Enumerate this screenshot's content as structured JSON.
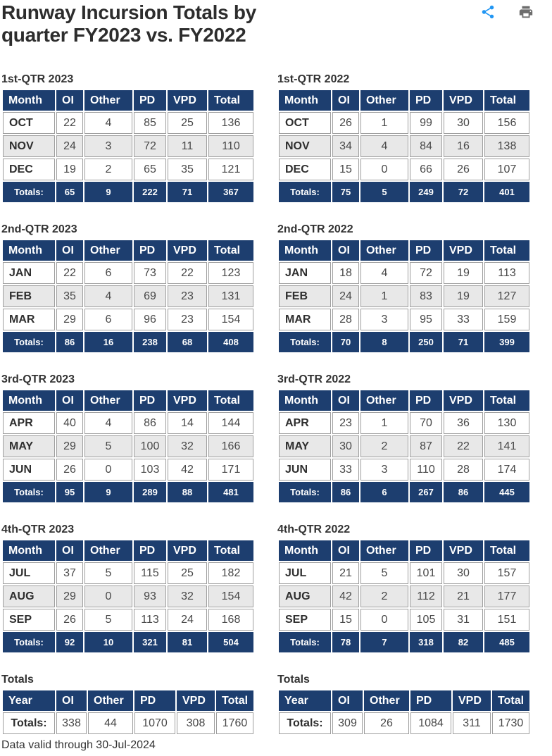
{
  "page": {
    "title": "Runway Incursion Totals by quarter FY2023 vs. FY2022",
    "footer_note": "Data valid through 30-Jul-2024"
  },
  "toolbar": {
    "share_icon": "share",
    "print_icon": "print"
  },
  "colors": {
    "table_header_bg": "#1D3E6F",
    "row_alt_bg": "#E8E8E8",
    "cell_border": "#9E9E9E",
    "share_icon": "#2196F3",
    "print_icon": "#6D6D6D"
  },
  "chart_data": [
    {
      "type": "table",
      "variant": "monthly",
      "title": "1st-QTR 2023",
      "columns": [
        "Month",
        "OI",
        "Other",
        "PD",
        "VPD",
        "Total"
      ],
      "rows": [
        [
          "OCT",
          22,
          4,
          85,
          25,
          136
        ],
        [
          "NOV",
          24,
          3,
          72,
          11,
          110
        ],
        [
          "DEC",
          19,
          2,
          65,
          35,
          121
        ]
      ],
      "totals_row": [
        "Totals:",
        65,
        9,
        222,
        71,
        367
      ]
    },
    {
      "type": "table",
      "variant": "monthly",
      "title": "1st-QTR 2022",
      "columns": [
        "Month",
        "OI",
        "Other",
        "PD",
        "VPD",
        "Total"
      ],
      "rows": [
        [
          "OCT",
          26,
          1,
          99,
          30,
          156
        ],
        [
          "NOV",
          34,
          4,
          84,
          16,
          138
        ],
        [
          "DEC",
          15,
          0,
          66,
          26,
          107
        ]
      ],
      "totals_row": [
        "Totals:",
        75,
        5,
        249,
        72,
        401
      ]
    },
    {
      "type": "table",
      "variant": "monthly",
      "title": "2nd-QTR 2023",
      "columns": [
        "Month",
        "OI",
        "Other",
        "PD",
        "VPD",
        "Total"
      ],
      "rows": [
        [
          "JAN",
          22,
          6,
          73,
          22,
          123
        ],
        [
          "FEB",
          35,
          4,
          69,
          23,
          131
        ],
        [
          "MAR",
          29,
          6,
          96,
          23,
          154
        ]
      ],
      "totals_row": [
        "Totals:",
        86,
        16,
        238,
        68,
        408
      ]
    },
    {
      "type": "table",
      "variant": "monthly",
      "title": "2nd-QTR 2022",
      "columns": [
        "Month",
        "OI",
        "Other",
        "PD",
        "VPD",
        "Total"
      ],
      "rows": [
        [
          "JAN",
          18,
          4,
          72,
          19,
          113
        ],
        [
          "FEB",
          24,
          1,
          83,
          19,
          127
        ],
        [
          "MAR",
          28,
          3,
          95,
          33,
          159
        ]
      ],
      "totals_row": [
        "Totals:",
        70,
        8,
        250,
        71,
        399
      ]
    },
    {
      "type": "table",
      "variant": "monthly",
      "title": "3rd-QTR 2023",
      "columns": [
        "Month",
        "OI",
        "Other",
        "PD",
        "VPD",
        "Total"
      ],
      "rows": [
        [
          "APR",
          40,
          4,
          86,
          14,
          144
        ],
        [
          "MAY",
          29,
          5,
          100,
          32,
          166
        ],
        [
          "JUN",
          26,
          0,
          103,
          42,
          171
        ]
      ],
      "totals_row": [
        "Totals:",
        95,
        9,
        289,
        88,
        481
      ]
    },
    {
      "type": "table",
      "variant": "monthly",
      "title": "3rd-QTR 2022",
      "columns": [
        "Month",
        "OI",
        "Other",
        "PD",
        "VPD",
        "Total"
      ],
      "rows": [
        [
          "APR",
          23,
          1,
          70,
          36,
          130
        ],
        [
          "MAY",
          30,
          2,
          87,
          22,
          141
        ],
        [
          "JUN",
          33,
          3,
          110,
          28,
          174
        ]
      ],
      "totals_row": [
        "Totals:",
        86,
        6,
        267,
        86,
        445
      ]
    },
    {
      "type": "table",
      "variant": "monthly",
      "title": "4th-QTR 2023",
      "columns": [
        "Month",
        "OI",
        "Other",
        "PD",
        "VPD",
        "Total"
      ],
      "rows": [
        [
          "JUL",
          37,
          5,
          115,
          25,
          182
        ],
        [
          "AUG",
          29,
          0,
          93,
          32,
          154
        ],
        [
          "SEP",
          26,
          5,
          113,
          24,
          168
        ]
      ],
      "totals_row": [
        "Totals:",
        92,
        10,
        321,
        81,
        504
      ]
    },
    {
      "type": "table",
      "variant": "monthly",
      "title": "4th-QTR 2022",
      "columns": [
        "Month",
        "OI",
        "Other",
        "PD",
        "VPD",
        "Total"
      ],
      "rows": [
        [
          "JUL",
          21,
          5,
          101,
          30,
          157
        ],
        [
          "AUG",
          42,
          2,
          112,
          21,
          177
        ],
        [
          "SEP",
          15,
          0,
          105,
          31,
          151
        ]
      ],
      "totals_row": [
        "Totals:",
        78,
        7,
        318,
        82,
        485
      ]
    },
    {
      "type": "table",
      "variant": "summary",
      "title": "Totals",
      "columns": [
        "Year",
        "OI",
        "Other",
        "PD",
        "VPD",
        "Total"
      ],
      "rows": [
        [
          "Totals:",
          338,
          44,
          1070,
          308,
          1760
        ]
      ]
    },
    {
      "type": "table",
      "variant": "summary",
      "title": "Totals",
      "columns": [
        "Year",
        "OI",
        "Other",
        "PD",
        "VPD",
        "Total"
      ],
      "rows": [
        [
          "Totals:",
          309,
          26,
          1084,
          311,
          1730
        ]
      ]
    }
  ]
}
